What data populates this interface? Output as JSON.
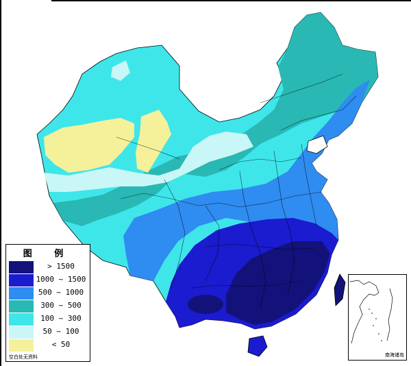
{
  "legend": {
    "title": "图  例",
    "items": [
      {
        "label": "> 1500",
        "color": "#12127a"
      },
      {
        "label": "1000 ~ 1500",
        "color": "#1b1bd0"
      },
      {
        "label": "500 ~ 1000",
        "color": "#2f8cf0"
      },
      {
        "label": "300 ~ 500",
        "color": "#29b8b4"
      },
      {
        "label": "100 ~ 300",
        "color": "#3ee6ea"
      },
      {
        "label": "50 ~ 100",
        "color": "#c9f6f6"
      },
      {
        "label": "< 50",
        "color": "#f5f09a"
      }
    ],
    "note": "空白处无资料"
  },
  "inset": {
    "label": "南海诸岛"
  }
}
